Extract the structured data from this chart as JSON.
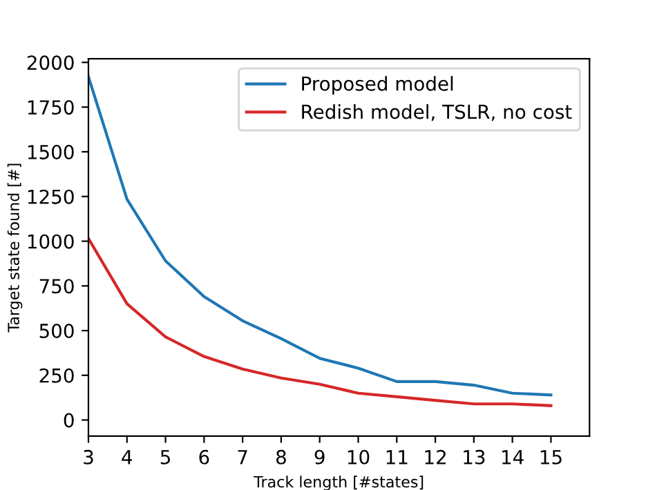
{
  "chart_data": {
    "type": "line",
    "xlabel": "Track length [#states]",
    "ylabel": "Target state found [#]",
    "x": [
      3,
      4,
      5,
      6,
      7,
      8,
      9,
      10,
      11,
      12,
      13,
      14,
      15
    ],
    "series": [
      {
        "name": "Proposed model",
        "color": "#1f77b4",
        "values": [
          1920,
          1235,
          890,
          690,
          555,
          455,
          345,
          290,
          215,
          215,
          195,
          150,
          140
        ]
      },
      {
        "name": "Redish model, TSLR, no cost",
        "color": "#d62728",
        "values": [
          1015,
          650,
          465,
          355,
          285,
          235,
          200,
          150,
          130,
          110,
          90,
          90,
          80
        ]
      }
    ],
    "xlim": [
      3,
      16
    ],
    "ylim": [
      -90,
      2020
    ],
    "xticks": [
      3,
      4,
      5,
      6,
      7,
      8,
      9,
      10,
      11,
      12,
      13,
      14,
      15
    ],
    "yticks": [
      0,
      250,
      500,
      750,
      1000,
      1250,
      1500,
      1750,
      2000
    ],
    "legend": "top right",
    "grid": false
  }
}
